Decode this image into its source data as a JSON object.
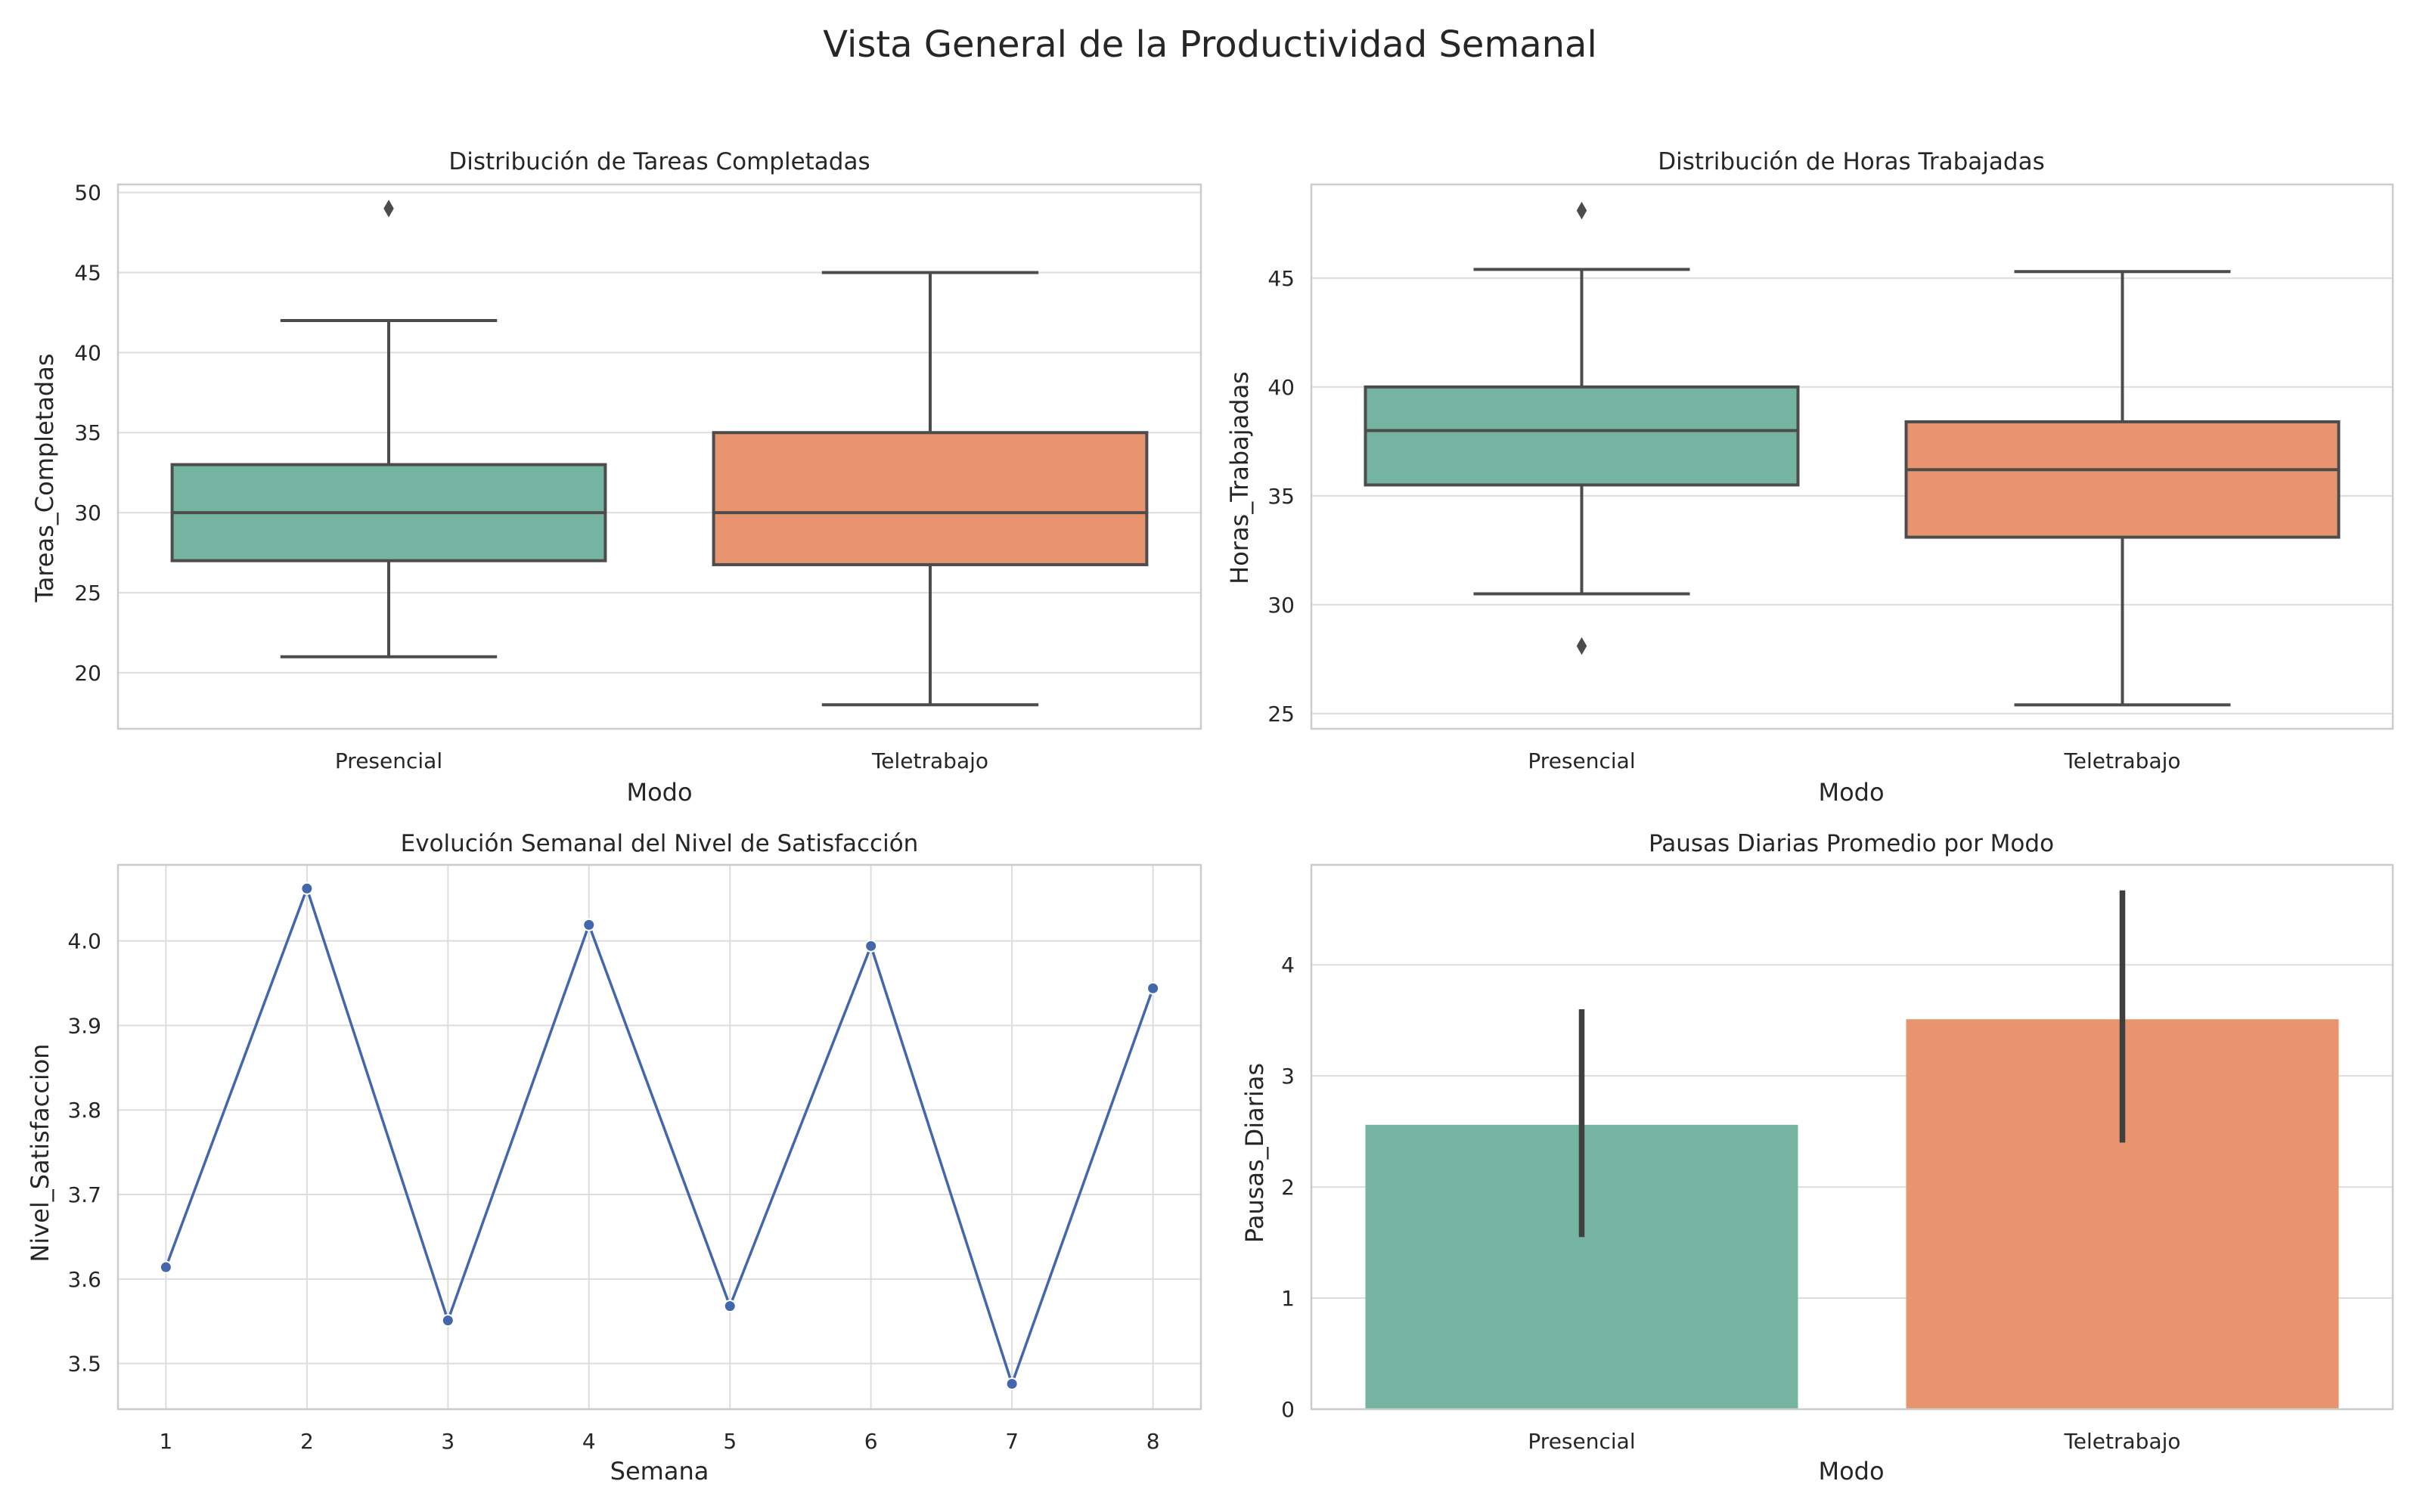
{
  "suptitle": "Vista General de la Productividad Semanal",
  "palette": {
    "presencial": "#74b4a0",
    "teletrabajo": "#e8956f",
    "line": "#4367ad",
    "box_edge": "#4c4c4c",
    "errbar": "#3f3f3f"
  },
  "chart_data": [
    {
      "type": "box",
      "title": "Distribución de Tareas Completadas",
      "xlabel": "Modo",
      "ylabel": "Tareas_Completadas",
      "ylim": [
        16.5,
        50.5
      ],
      "yticks": [
        20,
        25,
        30,
        35,
        40,
        45,
        50
      ],
      "categories": [
        "Presencial",
        "Teletrabajo"
      ],
      "boxes": [
        {
          "name": "Presencial",
          "whisker_low": 21,
          "q1": 27,
          "median": 30,
          "q3": 33,
          "whisker_high": 42,
          "outliers": [
            49
          ]
        },
        {
          "name": "Teletrabajo",
          "whisker_low": 18,
          "q1": 26.75,
          "median": 30,
          "q3": 35,
          "whisker_high": 45,
          "outliers": []
        }
      ]
    },
    {
      "type": "box",
      "title": "Distribución de Horas Trabajadas",
      "xlabel": "Modo",
      "ylabel": "Horas_Trabajadas",
      "ylim": [
        24.3,
        49.3
      ],
      "yticks": [
        25,
        30,
        35,
        40,
        45
      ],
      "categories": [
        "Presencial",
        "Teletrabajo"
      ],
      "boxes": [
        {
          "name": "Presencial",
          "whisker_low": 30.5,
          "q1": 35.5,
          "median": 38,
          "q3": 40,
          "whisker_high": 45.4,
          "outliers": [
            48.1,
            28.1
          ]
        },
        {
          "name": "Teletrabajo",
          "whisker_low": 25.4,
          "q1": 33.1,
          "median": 36.2,
          "q3": 38.4,
          "whisker_high": 45.3,
          "outliers": []
        }
      ]
    },
    {
      "type": "line",
      "title": "Evolución Semanal del Nivel de Satisfacción",
      "xlabel": "Semana",
      "ylabel": "Nivel_Satisfaccion",
      "xlim": [
        0.66,
        8.34
      ],
      "ylim": [
        3.446,
        4.09
      ],
      "xticks": [
        1,
        2,
        3,
        4,
        5,
        6,
        7,
        8
      ],
      "yticks": [
        3.5,
        3.6,
        3.7,
        3.8,
        3.9,
        4.0
      ],
      "ytick_labels": [
        "3.5",
        "3.6",
        "3.7",
        "3.8",
        "3.9",
        "4.0"
      ],
      "x": [
        1,
        2,
        3,
        4,
        5,
        6,
        7,
        8
      ],
      "y": [
        3.614,
        4.062,
        3.551,
        4.019,
        3.568,
        3.994,
        3.476,
        3.944
      ]
    },
    {
      "type": "bar",
      "title": "Pausas Diarias Promedio por Modo",
      "xlabel": "Modo",
      "ylabel": "Pausas_Diarias",
      "ylim": [
        0,
        4.9
      ],
      "yticks": [
        0,
        1,
        2,
        3,
        4
      ],
      "categories": [
        "Presencial",
        "Teletrabajo"
      ],
      "values": [
        2.56,
        3.51
      ],
      "error_low": [
        1.55,
        2.4
      ],
      "error_high": [
        3.6,
        4.67
      ]
    }
  ]
}
